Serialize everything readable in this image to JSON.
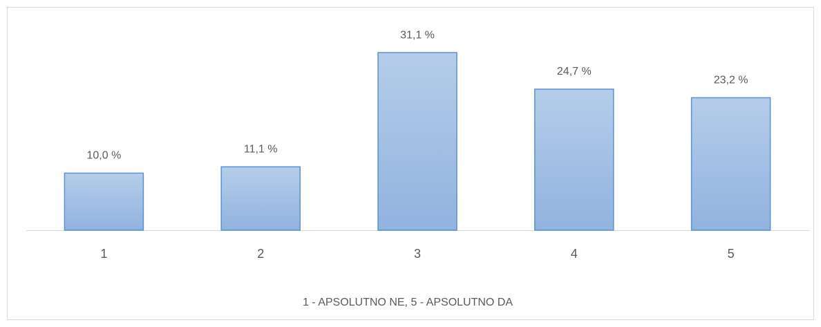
{
  "chart_data": {
    "type": "bar",
    "categories": [
      "1",
      "2",
      "3",
      "4",
      "5"
    ],
    "values": [
      10.0,
      11.1,
      31.1,
      24.7,
      23.2
    ],
    "value_labels": [
      "10,0 %",
      "11,1 %",
      "31,1 %",
      "24,7 %",
      "23,2 %"
    ],
    "xlabel": "1 - APSOLUTNO NE,  5 - APSOLUTNO DA",
    "color": "#9dbce4"
  }
}
